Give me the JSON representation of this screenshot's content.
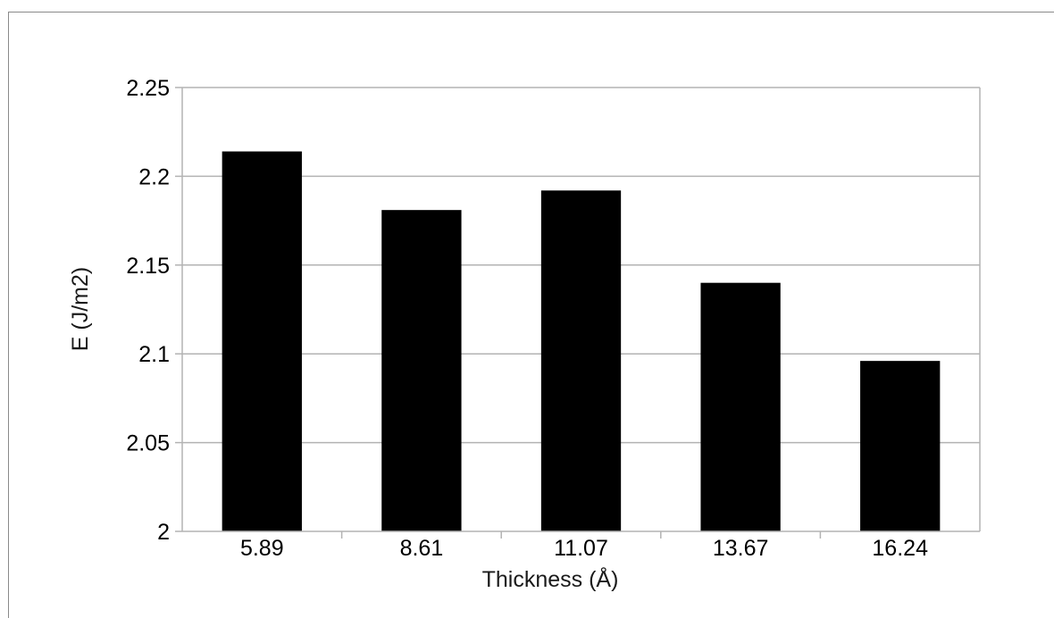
{
  "chart_data": {
    "type": "bar",
    "categories": [
      "5.89",
      "8.61",
      "11.07",
      "13.67",
      "16.24"
    ],
    "values": [
      2.214,
      2.181,
      2.192,
      2.14,
      2.096
    ],
    "title": "",
    "xlabel": "Thickness (Å)",
    "ylabel": "E (J/m2)",
    "ylim": [
      2,
      2.25
    ],
    "yticks": [
      "2",
      "2.05",
      "2.1",
      "2.15",
      "2.2",
      "2.25"
    ],
    "grid": true,
    "legend": "none",
    "bar_color": "#000000",
    "grid_color": "#b3b3b3"
  }
}
